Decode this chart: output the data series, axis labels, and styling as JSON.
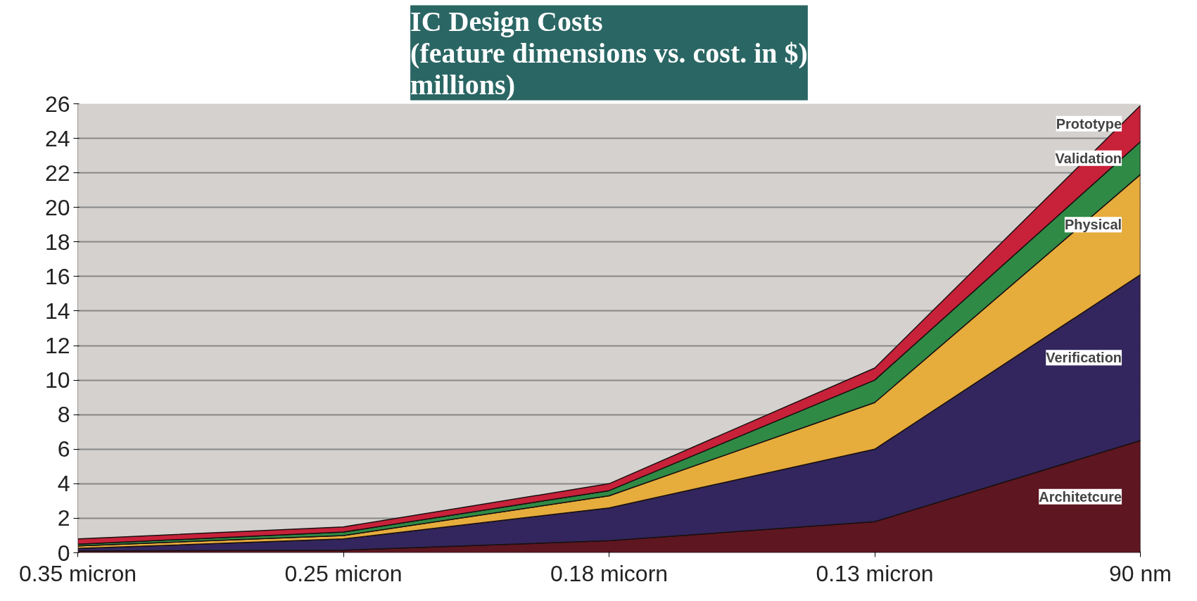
{
  "chart_data": {
    "type": "area",
    "stacked": true,
    "title": "IC Design Costs\n(feature dimensions vs. cost. in $)\nmillions)",
    "categories": [
      "0.35 micron",
      "0.25 micron",
      "0.18 micorn",
      "0.13 micron",
      "90 nm"
    ],
    "series": [
      {
        "name": "Architetcure",
        "color": "#5e1620",
        "values": [
          0.1,
          0.15,
          0.7,
          1.8,
          6.5
        ]
      },
      {
        "name": "Verification",
        "color": "#33265e",
        "values": [
          0.15,
          0.65,
          1.9,
          4.2,
          9.6
        ]
      },
      {
        "name": "Physical",
        "color": "#e6ac3c",
        "values": [
          0.15,
          0.2,
          0.7,
          2.7,
          5.8
        ]
      },
      {
        "name": "Validation",
        "color": "#2f8a45",
        "values": [
          0.1,
          0.2,
          0.3,
          1.3,
          1.9
        ]
      },
      {
        "name": "Prototype",
        "color": "#c8213a",
        "values": [
          0.3,
          0.3,
          0.4,
          0.7,
          2.1
        ]
      }
    ],
    "ylim": [
      0,
      26
    ],
    "yticks": [
      0,
      2,
      4,
      6,
      8,
      10,
      12,
      14,
      16,
      18,
      20,
      22,
      24,
      26
    ],
    "grid": "y"
  }
}
